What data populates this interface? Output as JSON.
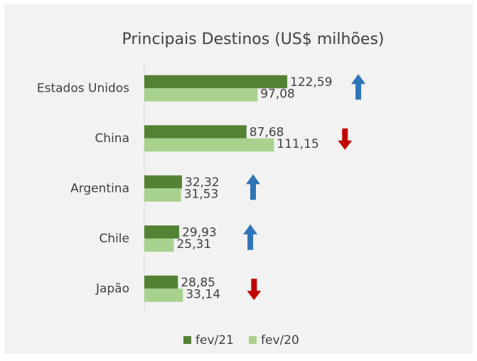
{
  "chart_data": {
    "type": "barh",
    "title": "Principais Destinos (US$ milhões)",
    "categories": [
      "Estados Unidos",
      "China",
      "Argentina",
      "Chile",
      "Japão"
    ],
    "series": [
      {
        "name": "fev/21",
        "color": "#548235",
        "values": [
          122.59,
          87.68,
          32.32,
          29.93,
          28.85
        ],
        "value_labels": [
          "122,59",
          "87,68",
          "32,32",
          "29,93",
          "28,85"
        ]
      },
      {
        "name": "fev/20",
        "color": "#a9d18e",
        "values": [
          97.08,
          111.15,
          31.53,
          25.31,
          33.14
        ],
        "value_labels": [
          "97,08",
          "111,15",
          "31,53",
          "25,31",
          "33,14"
        ]
      }
    ],
    "xlim": [
      0,
      150
    ],
    "legend": "bottom"
  }
}
